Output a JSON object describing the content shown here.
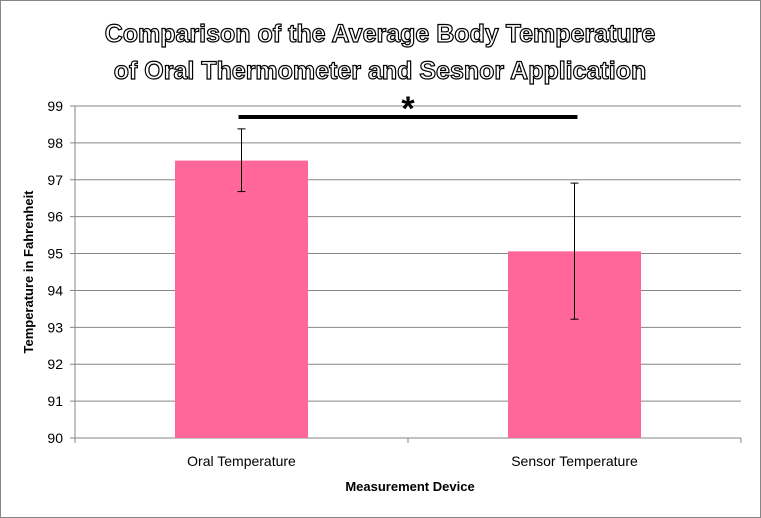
{
  "chart_data": {
    "type": "bar",
    "title_lines": [
      "Comparison of the Average Body Temperature",
      "of Oral Thermometer and Sesnor Application"
    ],
    "xlabel": "Measurement Device",
    "ylabel": "Temperature in Fahrenheit",
    "categories": [
      "Oral Temperature",
      "Sensor Temperature"
    ],
    "values": [
      97.52,
      95.06
    ],
    "error_bars": [
      {
        "low": 96.68,
        "high": 98.38
      },
      {
        "low": 93.22,
        "high": 96.91
      }
    ],
    "ylim": [
      90,
      99
    ],
    "yticks": [
      "90",
      "91",
      "92",
      "93",
      "94",
      "95",
      "96",
      "97",
      "98",
      "99"
    ],
    "grid": true,
    "legend": "none",
    "bar_color": "#ff6699",
    "significance_marker": "*"
  }
}
